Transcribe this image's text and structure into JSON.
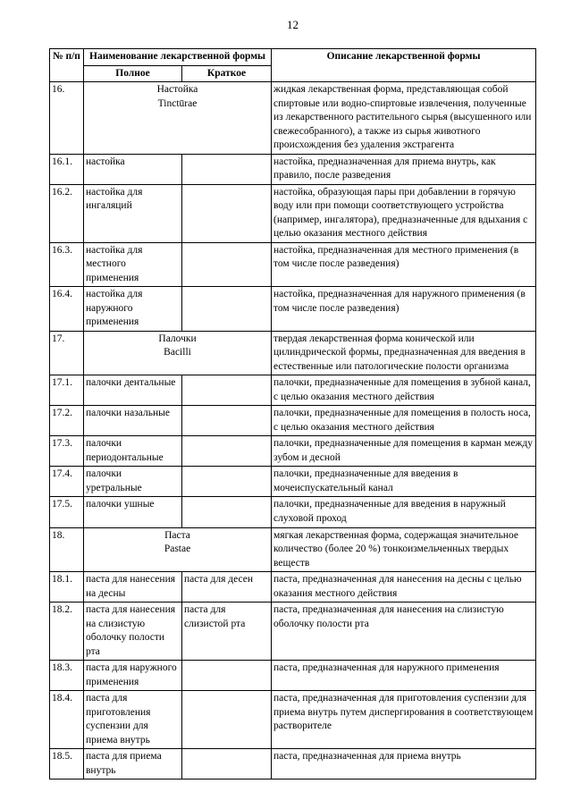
{
  "page_number": "12",
  "header": {
    "col_num": "№ п/п",
    "col_name_group": "Наименование лекарственной формы",
    "col_full": "Полное",
    "col_short": "Краткое",
    "col_desc": "Описание лекарственной формы"
  },
  "rows": [
    {
      "num": "16.",
      "full": "Настойка",
      "full2": "Tinctūrae",
      "merged": true,
      "desc": "жидкая лекарственная форма, представляющая собой спиртовые или водно-спиртовые извлечения, полученные из лекарственного растительного сырья (высушенного или свежесобранного), а также из сырья животного происхождения без удаления экстрагента"
    },
    {
      "num": "16.1.",
      "full": "настойка",
      "short": "",
      "desc": "настойка, предназначенная для приема внутрь, как правило, после разведения"
    },
    {
      "num": "16.2.",
      "full": "настойка для ингаляций",
      "short": "",
      "desc": "настойка, образующая пары при добавлении в горячую воду или при помощи соответствующего устройства (например, ингалятора), предназначенные для вдыхания с целью оказания местного действия"
    },
    {
      "num": "16.3.",
      "full": "настойка для местного применения",
      "short": "",
      "desc": "настойка, предназначенная для местного применения (в том числе после разведения)"
    },
    {
      "num": "16.4.",
      "full": "настойка для наружного применения",
      "short": "",
      "desc": "настойка, предназначенная для наружного применения (в том числе после разведения)"
    },
    {
      "num": "17.",
      "full": "Палочки",
      "full2": "Bacilli",
      "merged": true,
      "desc": "твердая лекарственная форма конической или цилиндрической формы, предназначенная для введения в естественные или патологические полости организма"
    },
    {
      "num": "17.1.",
      "full": "палочки дентальные",
      "short": "",
      "desc": "палочки, предназначенные для помещения в зубной канал, с целью оказания местного действия"
    },
    {
      "num": "17.2.",
      "full": "палочки назальные",
      "short": "",
      "desc": "палочки, предназначенные для помещения в полость носа, с целью оказания местного действия"
    },
    {
      "num": "17.3.",
      "full": "палочки периодонтальные",
      "short": "",
      "desc": "палочки, предназначенные для помещения в карман между зубом и десной"
    },
    {
      "num": "17.4.",
      "full": "палочки уретральные",
      "short": "",
      "desc": "палочки, предназначенные для введения в мочеиспускательный канал"
    },
    {
      "num": "17.5.",
      "full": "палочки ушные",
      "short": "",
      "desc": "палочки, предназначенные для введения в наружный слуховой проход"
    },
    {
      "num": "18.",
      "full": "Паста",
      "full2": "Pastae",
      "merged": true,
      "desc": "мягкая лекарственная форма, содержащая значительное количество (более 20 %) тонкоизмельченных твердых веществ"
    },
    {
      "num": "18.1.",
      "full": "паста для нанесения на десны",
      "short": "паста для десен",
      "desc": "паста, предназначенная для нанесения на десны с целью оказания местного действия"
    },
    {
      "num": "18.2.",
      "full": "паста для нанесения на слизистую оболочку полости рта",
      "short": "паста для слизистой рта",
      "desc": "паста, предназначенная для нанесения на слизистую оболочку полости рта"
    },
    {
      "num": "18.3.",
      "full": "паста для наружного применения",
      "short": "",
      "desc": "паста, предназначенная для наружного применения"
    },
    {
      "num": "18.4.",
      "full": "паста для приготовления суспензии для приема внутрь",
      "short": "",
      "desc": "паста, предназначенная для приготовления суспензии для приема внутрь путем диспергирования в соответствующем растворителе"
    },
    {
      "num": "18.5.",
      "full": "паста для приема внутрь",
      "short": "",
      "desc": "паста, предназначенная для приема внутрь"
    }
  ]
}
